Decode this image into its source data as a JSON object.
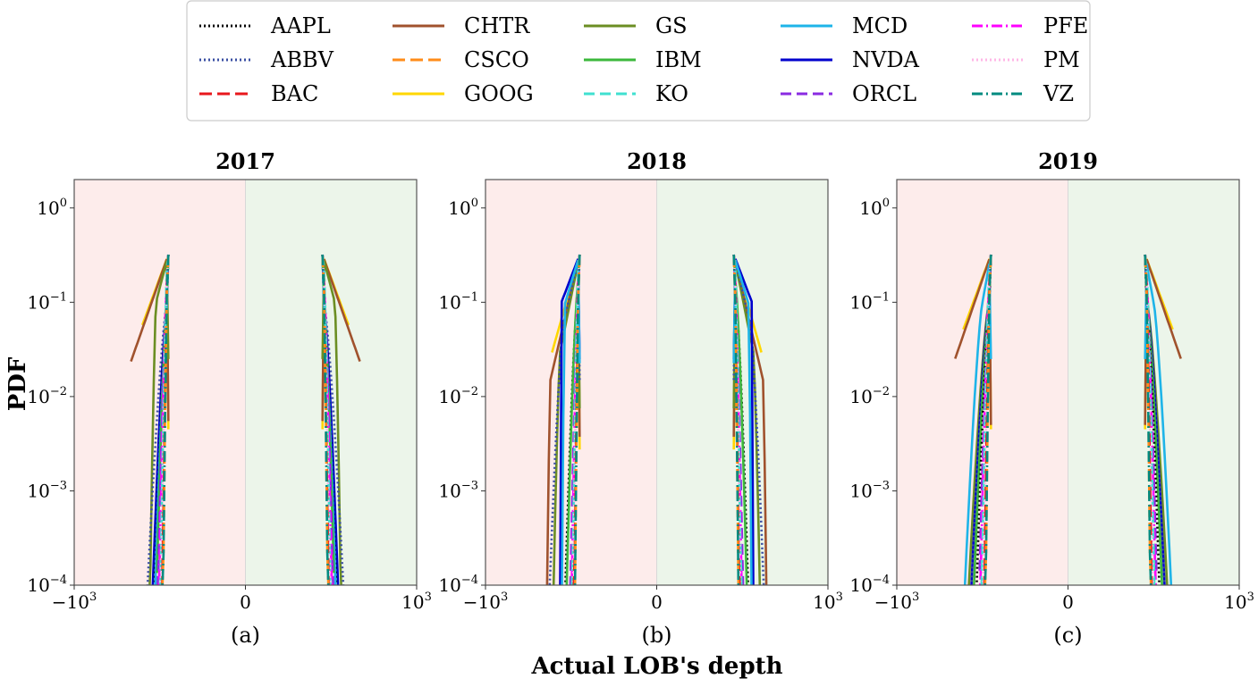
{
  "figure": {
    "xlabel": "Actual LOB's depth",
    "ylabel": "PDF"
  },
  "legend": {
    "placement": "top-center",
    "columns": 5,
    "entries": [
      {
        "name": "AAPL",
        "color": "#000000",
        "dash": "2,3"
      },
      {
        "name": "ABBV",
        "color": "#3a4fa3",
        "dash": "2,3"
      },
      {
        "name": "BAC",
        "color": "#e8171c",
        "dash": "14,6"
      },
      {
        "name": "CHTR",
        "color": "#a0522d",
        "dash": ""
      },
      {
        "name": "CSCO",
        "color": "#ff8c1a",
        "dash": "14,6"
      },
      {
        "name": "GOOG",
        "color": "#ffd700",
        "dash": ""
      },
      {
        "name": "GS",
        "color": "#6b8e23",
        "dash": ""
      },
      {
        "name": "IBM",
        "color": "#3cb83c",
        "dash": ""
      },
      {
        "name": "KO",
        "color": "#40e0d0",
        "dash": "12,6"
      },
      {
        "name": "MCD",
        "color": "#1eb4e8",
        "dash": ""
      },
      {
        "name": "NVDA",
        "color": "#0000cd",
        "dash": ""
      },
      {
        "name": "ORCL",
        "color": "#8a2be2",
        "dash": "12,6"
      },
      {
        "name": "PFE",
        "color": "#ff00ff",
        "dash": "12,4,2,4"
      },
      {
        "name": "PM",
        "color": "#ffb6e6",
        "dash": "2,3"
      },
      {
        "name": "VZ",
        "color": "#008b80",
        "dash": "12,4,2,4"
      }
    ]
  },
  "chart_data": [
    {
      "type": "line",
      "title": "2017",
      "sublabel": "(a)",
      "xlim": [
        -1000,
        1000
      ],
      "ylim": [
        0.0001,
        2
      ],
      "yscale": "log",
      "xscale": "symlog",
      "bid_region_color": "#fdeceb",
      "ask_region_color": "#ecf5ea",
      "xticks": [
        {
          "base": "−10",
          "exp": "3"
        },
        {
          "base": "0",
          "exp": ""
        },
        {
          "base": "10",
          "exp": "3"
        }
      ],
      "yticks": [
        {
          "base": "10",
          "exp": "0",
          "value": 1
        },
        {
          "base": "10",
          "exp": "−1",
          "value": 0.1
        },
        {
          "base": "10",
          "exp": "−2",
          "value": 0.01
        },
        {
          "base": "10",
          "exp": "−3",
          "value": 0.001
        },
        {
          "base": "10",
          "exp": "−4",
          "value": 0.0001
        }
      ],
      "series": [
        {
          "name": "GOOG",
          "peak_y": 0.018,
          "peak_offset": 0.67,
          "width": 0.4
        },
        {
          "name": "CHTR",
          "peak_y": 0.022,
          "peak_offset": 0.59,
          "width": 0.56
        },
        {
          "name": "GS",
          "peak_y": 0.1,
          "peak_offset": 0.19,
          "width": 0.28
        },
        {
          "name": "ABBV",
          "peak_y": 0.1,
          "peak_offset": 0.02,
          "width": 0.32
        },
        {
          "name": "NVDA",
          "peak_y": 0.1,
          "peak_offset": 0.02,
          "width": 0.24
        },
        {
          "name": "AAPL",
          "peak_y": 0.1,
          "peak_offset": 0.02,
          "width": 0.21
        },
        {
          "name": "MCD",
          "peak_y": 0.09,
          "peak_offset": 0.02,
          "width": 0.2
        },
        {
          "name": "IBM",
          "peak_y": 0.12,
          "peak_offset": 0.02,
          "width": 0.18
        },
        {
          "name": "ORCL",
          "peak_y": 0.15,
          "peak_offset": 0.02,
          "width": 0.16
        },
        {
          "name": "PFE",
          "peak_y": 0.2,
          "peak_offset": 0.02,
          "width": 0.14
        },
        {
          "name": "KO",
          "peak_y": 0.25,
          "peak_offset": 0.02,
          "width": 0.12
        },
        {
          "name": "PM",
          "peak_y": 0.3,
          "peak_offset": 0.01,
          "width": 0.11
        },
        {
          "name": "BAC",
          "peak_y": 0.32,
          "peak_offset": 0.01,
          "width": 0.09
        },
        {
          "name": "CSCO",
          "peak_y": 0.32,
          "peak_offset": 0.01,
          "width": 0.08
        },
        {
          "name": "VZ",
          "peak_y": 0.32,
          "peak_offset": 0.01,
          "width": 0.08
        }
      ]
    },
    {
      "type": "line",
      "title": "2018",
      "sublabel": "(b)",
      "xlim": [
        -1000,
        1000
      ],
      "ylim": [
        0.0001,
        2
      ],
      "yscale": "log",
      "xscale": "symlog",
      "bid_region_color": "#fdeceb",
      "ask_region_color": "#ecf5ea",
      "xticks": [
        {
          "base": "−10",
          "exp": "3"
        },
        {
          "base": "0",
          "exp": ""
        },
        {
          "base": "10",
          "exp": "3"
        }
      ],
      "yticks": [
        {
          "base": "10",
          "exp": "0",
          "value": 1
        },
        {
          "base": "10",
          "exp": "−1",
          "value": 0.1
        },
        {
          "base": "10",
          "exp": "−2",
          "value": 0.01
        },
        {
          "base": "10",
          "exp": "−3",
          "value": 0.001
        },
        {
          "base": "10",
          "exp": "−4",
          "value": 0.0001
        }
      ],
      "series": [
        {
          "name": "GOOG",
          "peak_y": 0.011,
          "peak_offset": 0.6,
          "width": 0.42
        },
        {
          "name": "CHTR",
          "peak_y": 0.015,
          "peak_offset": 0.45,
          "width": 0.5
        },
        {
          "name": "GS",
          "peak_y": 0.03,
          "peak_offset": 0.3,
          "width": 0.4
        },
        {
          "name": "ABBV",
          "peak_y": 0.06,
          "peak_offset": 0.25,
          "width": 0.46
        },
        {
          "name": "NVDA",
          "peak_y": 0.1,
          "peak_offset": 0.28,
          "width": 0.28
        },
        {
          "name": "MCD",
          "peak_y": 0.09,
          "peak_offset": 0.24,
          "width": 0.26
        },
        {
          "name": "AAPL",
          "peak_y": 0.1,
          "peak_offset": 0.04,
          "width": 0.22
        },
        {
          "name": "IBM",
          "peak_y": 0.12,
          "peak_offset": 0.04,
          "width": 0.2
        },
        {
          "name": "ORCL",
          "peak_y": 0.15,
          "peak_offset": 0.02,
          "width": 0.14
        },
        {
          "name": "PFE",
          "peak_y": 0.2,
          "peak_offset": 0.02,
          "width": 0.12
        },
        {
          "name": "KO",
          "peak_y": 0.25,
          "peak_offset": 0.02,
          "width": 0.11
        },
        {
          "name": "PM",
          "peak_y": 0.3,
          "peak_offset": 0.01,
          "width": 0.1
        },
        {
          "name": "BAC",
          "peak_y": 0.32,
          "peak_offset": 0.01,
          "width": 0.08
        },
        {
          "name": "CSCO",
          "peak_y": 0.32,
          "peak_offset": 0.01,
          "width": 0.07
        },
        {
          "name": "VZ",
          "peak_y": 0.32,
          "peak_offset": 0.01,
          "width": 0.07
        }
      ]
    },
    {
      "type": "line",
      "title": "2019",
      "sublabel": "(c)",
      "xlim": [
        -1000,
        1000
      ],
      "ylim": [
        0.0001,
        2
      ],
      "yscale": "log",
      "xscale": "symlog",
      "bid_region_color": "#fdeceb",
      "ask_region_color": "#ecf5ea",
      "xticks": [
        {
          "base": "−10",
          "exp": "3"
        },
        {
          "base": "0",
          "exp": ""
        },
        {
          "base": "10",
          "exp": "3"
        }
      ],
      "yticks": [
        {
          "base": "10",
          "exp": "0",
          "value": 1
        },
        {
          "base": "10",
          "exp": "−1",
          "value": 0.1
        },
        {
          "base": "10",
          "exp": "−2",
          "value": 0.01
        },
        {
          "base": "10",
          "exp": "−3",
          "value": 0.001
        },
        {
          "base": "10",
          "exp": "−4",
          "value": 0.0001
        }
      ],
      "series": [
        {
          "name": "GOOG",
          "peak_y": 0.018,
          "peak_offset": 0.67,
          "width": 0.42
        },
        {
          "name": "CHTR",
          "peak_y": 0.02,
          "peak_offset": 0.6,
          "width": 0.55
        },
        {
          "name": "MCD",
          "peak_y": 0.1,
          "peak_offset": 0.13,
          "width": 0.4
        },
        {
          "name": "GS",
          "peak_y": 0.1,
          "peak_offset": 0.03,
          "width": 0.34
        },
        {
          "name": "NVDA",
          "peak_y": 0.1,
          "peak_offset": 0.03,
          "width": 0.3
        },
        {
          "name": "ABBV",
          "peak_y": 0.1,
          "peak_offset": 0.02,
          "width": 0.3
        },
        {
          "name": "IBM",
          "peak_y": 0.12,
          "peak_offset": 0.02,
          "width": 0.26
        },
        {
          "name": "AAPL",
          "peak_y": 0.12,
          "peak_offset": 0.02,
          "width": 0.22
        },
        {
          "name": "ORCL",
          "peak_y": 0.15,
          "peak_offset": 0.02,
          "width": 0.18
        },
        {
          "name": "PFE",
          "peak_y": 0.2,
          "peak_offset": 0.02,
          "width": 0.16
        },
        {
          "name": "KO",
          "peak_y": 0.25,
          "peak_offset": 0.02,
          "width": 0.14
        },
        {
          "name": "PM",
          "peak_y": 0.3,
          "peak_offset": 0.01,
          "width": 0.12
        },
        {
          "name": "BAC",
          "peak_y": 0.32,
          "peak_offset": 0.01,
          "width": 0.1
        },
        {
          "name": "CSCO",
          "peak_y": 0.32,
          "peak_offset": 0.01,
          "width": 0.08
        },
        {
          "name": "VZ",
          "peak_y": 0.32,
          "peak_offset": 0.01,
          "width": 0.08
        }
      ]
    }
  ]
}
